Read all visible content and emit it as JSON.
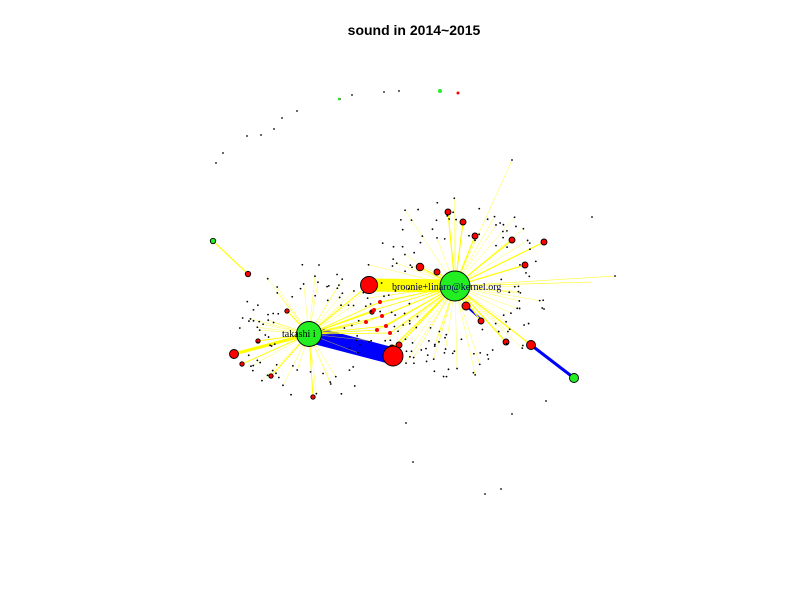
{
  "title": "sound in 2014~2015",
  "colors": {
    "background": "#ffffff",
    "node_green": "#22ee22",
    "node_red": "#ff0000",
    "node_dark": "#000000",
    "edge_yellow": "#ffff00",
    "edge_blue": "#0000ff",
    "label_hub": "#00005a",
    "label_secondary": "#000000"
  },
  "hubs": [
    {
      "id": "hub-broonie",
      "label": "broonie+linaro@kernel.org",
      "color": "green"
    },
    {
      "id": "hub-takashi",
      "label": "takashi i",
      "color": "green"
    }
  ]
}
